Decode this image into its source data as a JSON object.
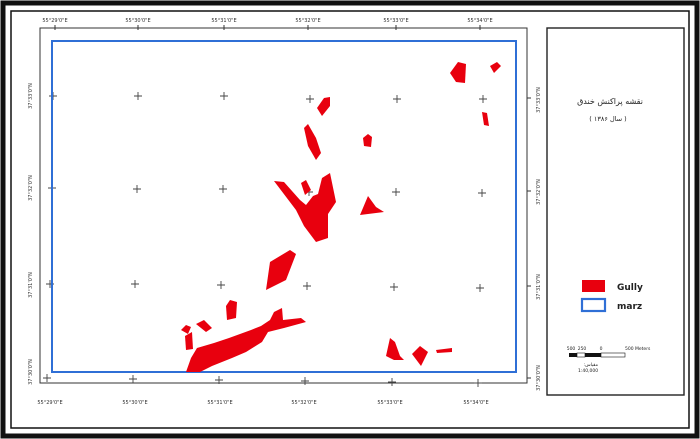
{
  "map": {
    "title": "نقشه پراکنش خندق",
    "subtitle": "( سال ۱۳۸۶ )",
    "colors": {
      "gully": "#e8000e",
      "boundary": "#2f6fd6",
      "frame": "#111111"
    },
    "top_ticks": [
      "55°29'0\"E",
      "55°30'0\"E",
      "55°31'0\"E",
      "55°32'0\"E",
      "55°33'0\"E",
      "55°34'0\"E"
    ],
    "bottom_ticks": [
      "55°29'0\"E",
      "55°30'0\"E",
      "55°31'0\"E",
      "55°32'0\"E",
      "55°33'0\"E",
      "55°34'0\"E"
    ],
    "left_ticks": [
      "37°33'0\"N",
      "37°32'0\"N",
      "37°31'0\"N",
      "37°30'0\"N"
    ],
    "right_ticks": [
      "37°33'0\"N",
      "37°32'0\"N",
      "37°31'0\"N",
      "37°30'0\"N"
    ],
    "legend": [
      {
        "label": "Gully",
        "symbol": "filled-red"
      },
      {
        "label": "marz",
        "symbol": "blue-outline"
      }
    ],
    "scale_bar": {
      "labels": [
        "500",
        "250",
        "0",
        "500 Meters"
      ],
      "ratio_label": "مقیاس:",
      "ratio": "1:40,000"
    }
  }
}
